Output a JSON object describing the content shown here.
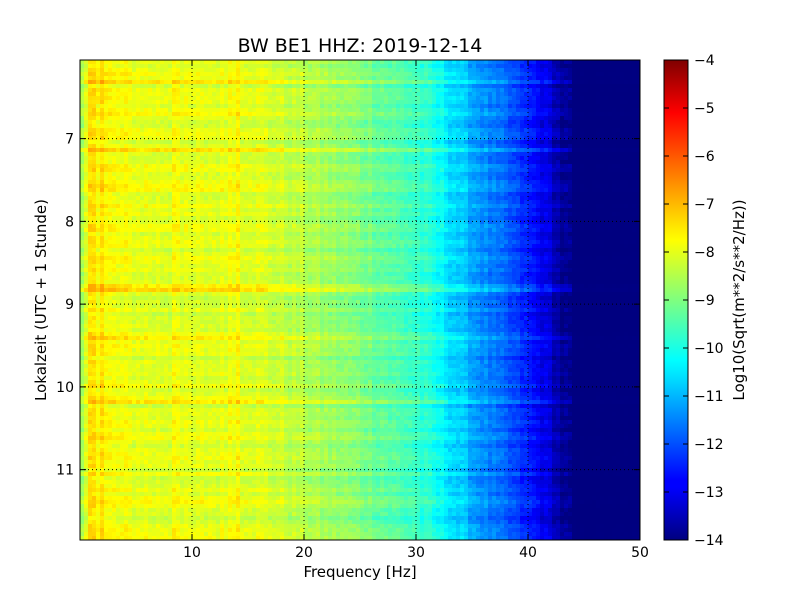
{
  "chart_data": {
    "type": "heatmap",
    "title": "BW BE1 HHZ: 2019-12-14",
    "xlabel": "Frequency [Hz]",
    "ylabel": "Lokalzeit (UTC + 1 Stunde)",
    "xlim": [
      0,
      50
    ],
    "ylim": [
      6.05,
      11.85
    ],
    "y_inverted": true,
    "x_ticks": [
      10,
      20,
      30,
      40,
      50
    ],
    "y_ticks": [
      7,
      8,
      9,
      10,
      11
    ],
    "grid": true,
    "colormap": "jet",
    "colorbar": {
      "label": "Log10(Sqrt(m**2/s**2/Hz))",
      "range": [
        -14,
        -4
      ],
      "ticks": [
        -4,
        -5,
        -6,
        -7,
        -8,
        -9,
        -10,
        -11,
        -12,
        -13,
        -14
      ]
    },
    "spectrum_profile": {
      "frequency_hz": [
        0,
        1,
        2,
        5,
        10,
        15,
        20,
        25,
        30,
        32,
        34,
        36,
        38,
        40,
        42,
        43,
        44,
        45,
        50
      ],
      "log10_psd": [
        -8.9,
        -7.6,
        -7.8,
        -8.0,
        -8.1,
        -8.0,
        -8.5,
        -9.0,
        -9.7,
        -10.2,
        -10.8,
        -11.4,
        -11.9,
        -12.5,
        -13.2,
        -13.8,
        -14,
        -14,
        -14
      ]
    },
    "bright_lines_hz": [
      0.8,
      1.2,
      2.0,
      8.6,
      13.5,
      14.2
    ],
    "bright_rows_hour": [
      6.3,
      6.7,
      7.15,
      7.6,
      8.45,
      8.8,
      9.4,
      10.2,
      11.4
    ]
  }
}
